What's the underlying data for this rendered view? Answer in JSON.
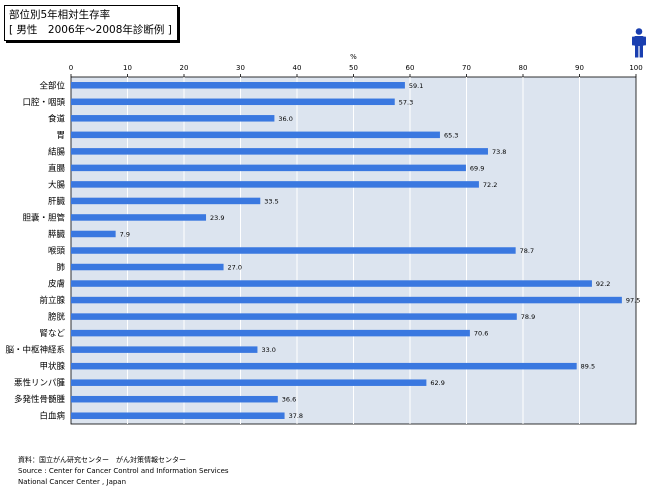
{
  "title": {
    "line1": "部位別5年相対生存率",
    "line2": "[ 男性　2006年〜2008年診断例 ]"
  },
  "icon": "male-person-icon",
  "chart_data": {
    "type": "bar",
    "orientation": "horizontal",
    "unit_label": "%",
    "xlim": [
      0,
      100
    ],
    "x_ticks": [
      0,
      10,
      20,
      30,
      40,
      50,
      60,
      70,
      80,
      90,
      100
    ],
    "grid": true,
    "categories": [
      "全部位",
      "口腔・咽頭",
      "食道",
      "胃",
      "結腸",
      "直腸",
      "大腸",
      "肝臓",
      "胆嚢・胆管",
      "膵臓",
      "喉頭",
      "肺",
      "皮膚",
      "前立腺",
      "膀胱",
      "腎など",
      "脳・中枢神経系",
      "甲状腺",
      "悪性リンパ腫",
      "多発性骨髄腫",
      "白血病"
    ],
    "values": [
      59.1,
      57.3,
      36.0,
      65.3,
      73.8,
      69.9,
      72.2,
      33.5,
      23.9,
      7.9,
      78.7,
      27.0,
      92.2,
      97.5,
      78.9,
      70.6,
      33.0,
      89.5,
      62.9,
      36.6,
      37.8
    ],
    "value_labels": [
      "59.1",
      "57.3",
      "36.0",
      "65.3",
      "73.8",
      "69.9",
      "72.2",
      "33.5",
      "23.9",
      "7.9",
      "78.7",
      "27.0",
      "92.2",
      "97.5",
      "78.9",
      "70.6",
      "33.0",
      "89.5",
      "62.9",
      "36.6",
      "37.8"
    ],
    "bar_color": "#3a78e0",
    "plot_bg": "#dce4ef"
  },
  "footer": {
    "line1": "資料：国立がん研究センター　がん対策情報センター",
    "line2": "Source : Center for Cancer Control and Information Services",
    "line3": "National Cancer Center , Japan"
  }
}
